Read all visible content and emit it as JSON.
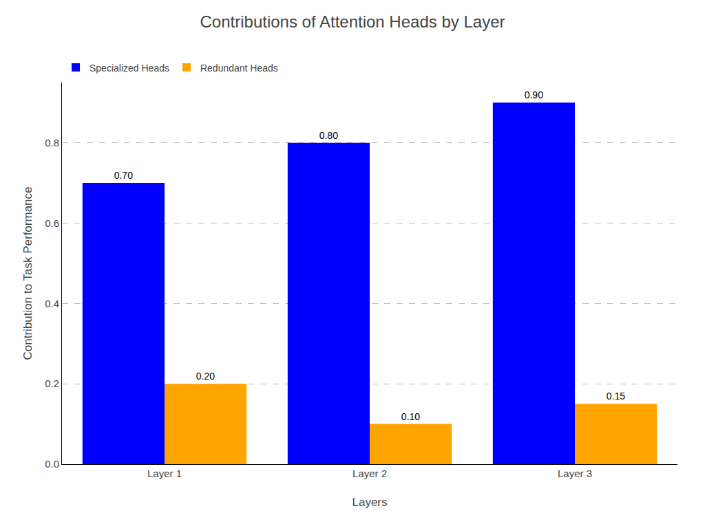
{
  "chart_data": {
    "type": "bar",
    "title": "Contributions of Attention Heads by Layer",
    "xlabel": "Layers",
    "ylabel": "Contribution to Task Performance",
    "categories": [
      "Layer 1",
      "Layer 2",
      "Layer 3"
    ],
    "series": [
      {
        "name": "Specialized Heads",
        "color": "#0000ff",
        "values": [
          0.7,
          0.8,
          0.9
        ],
        "value_labels": [
          "0.70",
          "0.80",
          "0.90"
        ]
      },
      {
        "name": "Redundant Heads",
        "color": "#ffa500",
        "values": [
          0.2,
          0.1,
          0.15
        ],
        "value_labels": [
          "0.20",
          "0.10",
          "0.15"
        ]
      }
    ],
    "ylim": [
      0,
      0.95
    ],
    "yticks": [
      {
        "value": 0.0,
        "label": "0.0"
      },
      0.2,
      0.4,
      0.6,
      0.8
    ],
    "grid": true,
    "legend": "upper left",
    "data_labels": true
  }
}
